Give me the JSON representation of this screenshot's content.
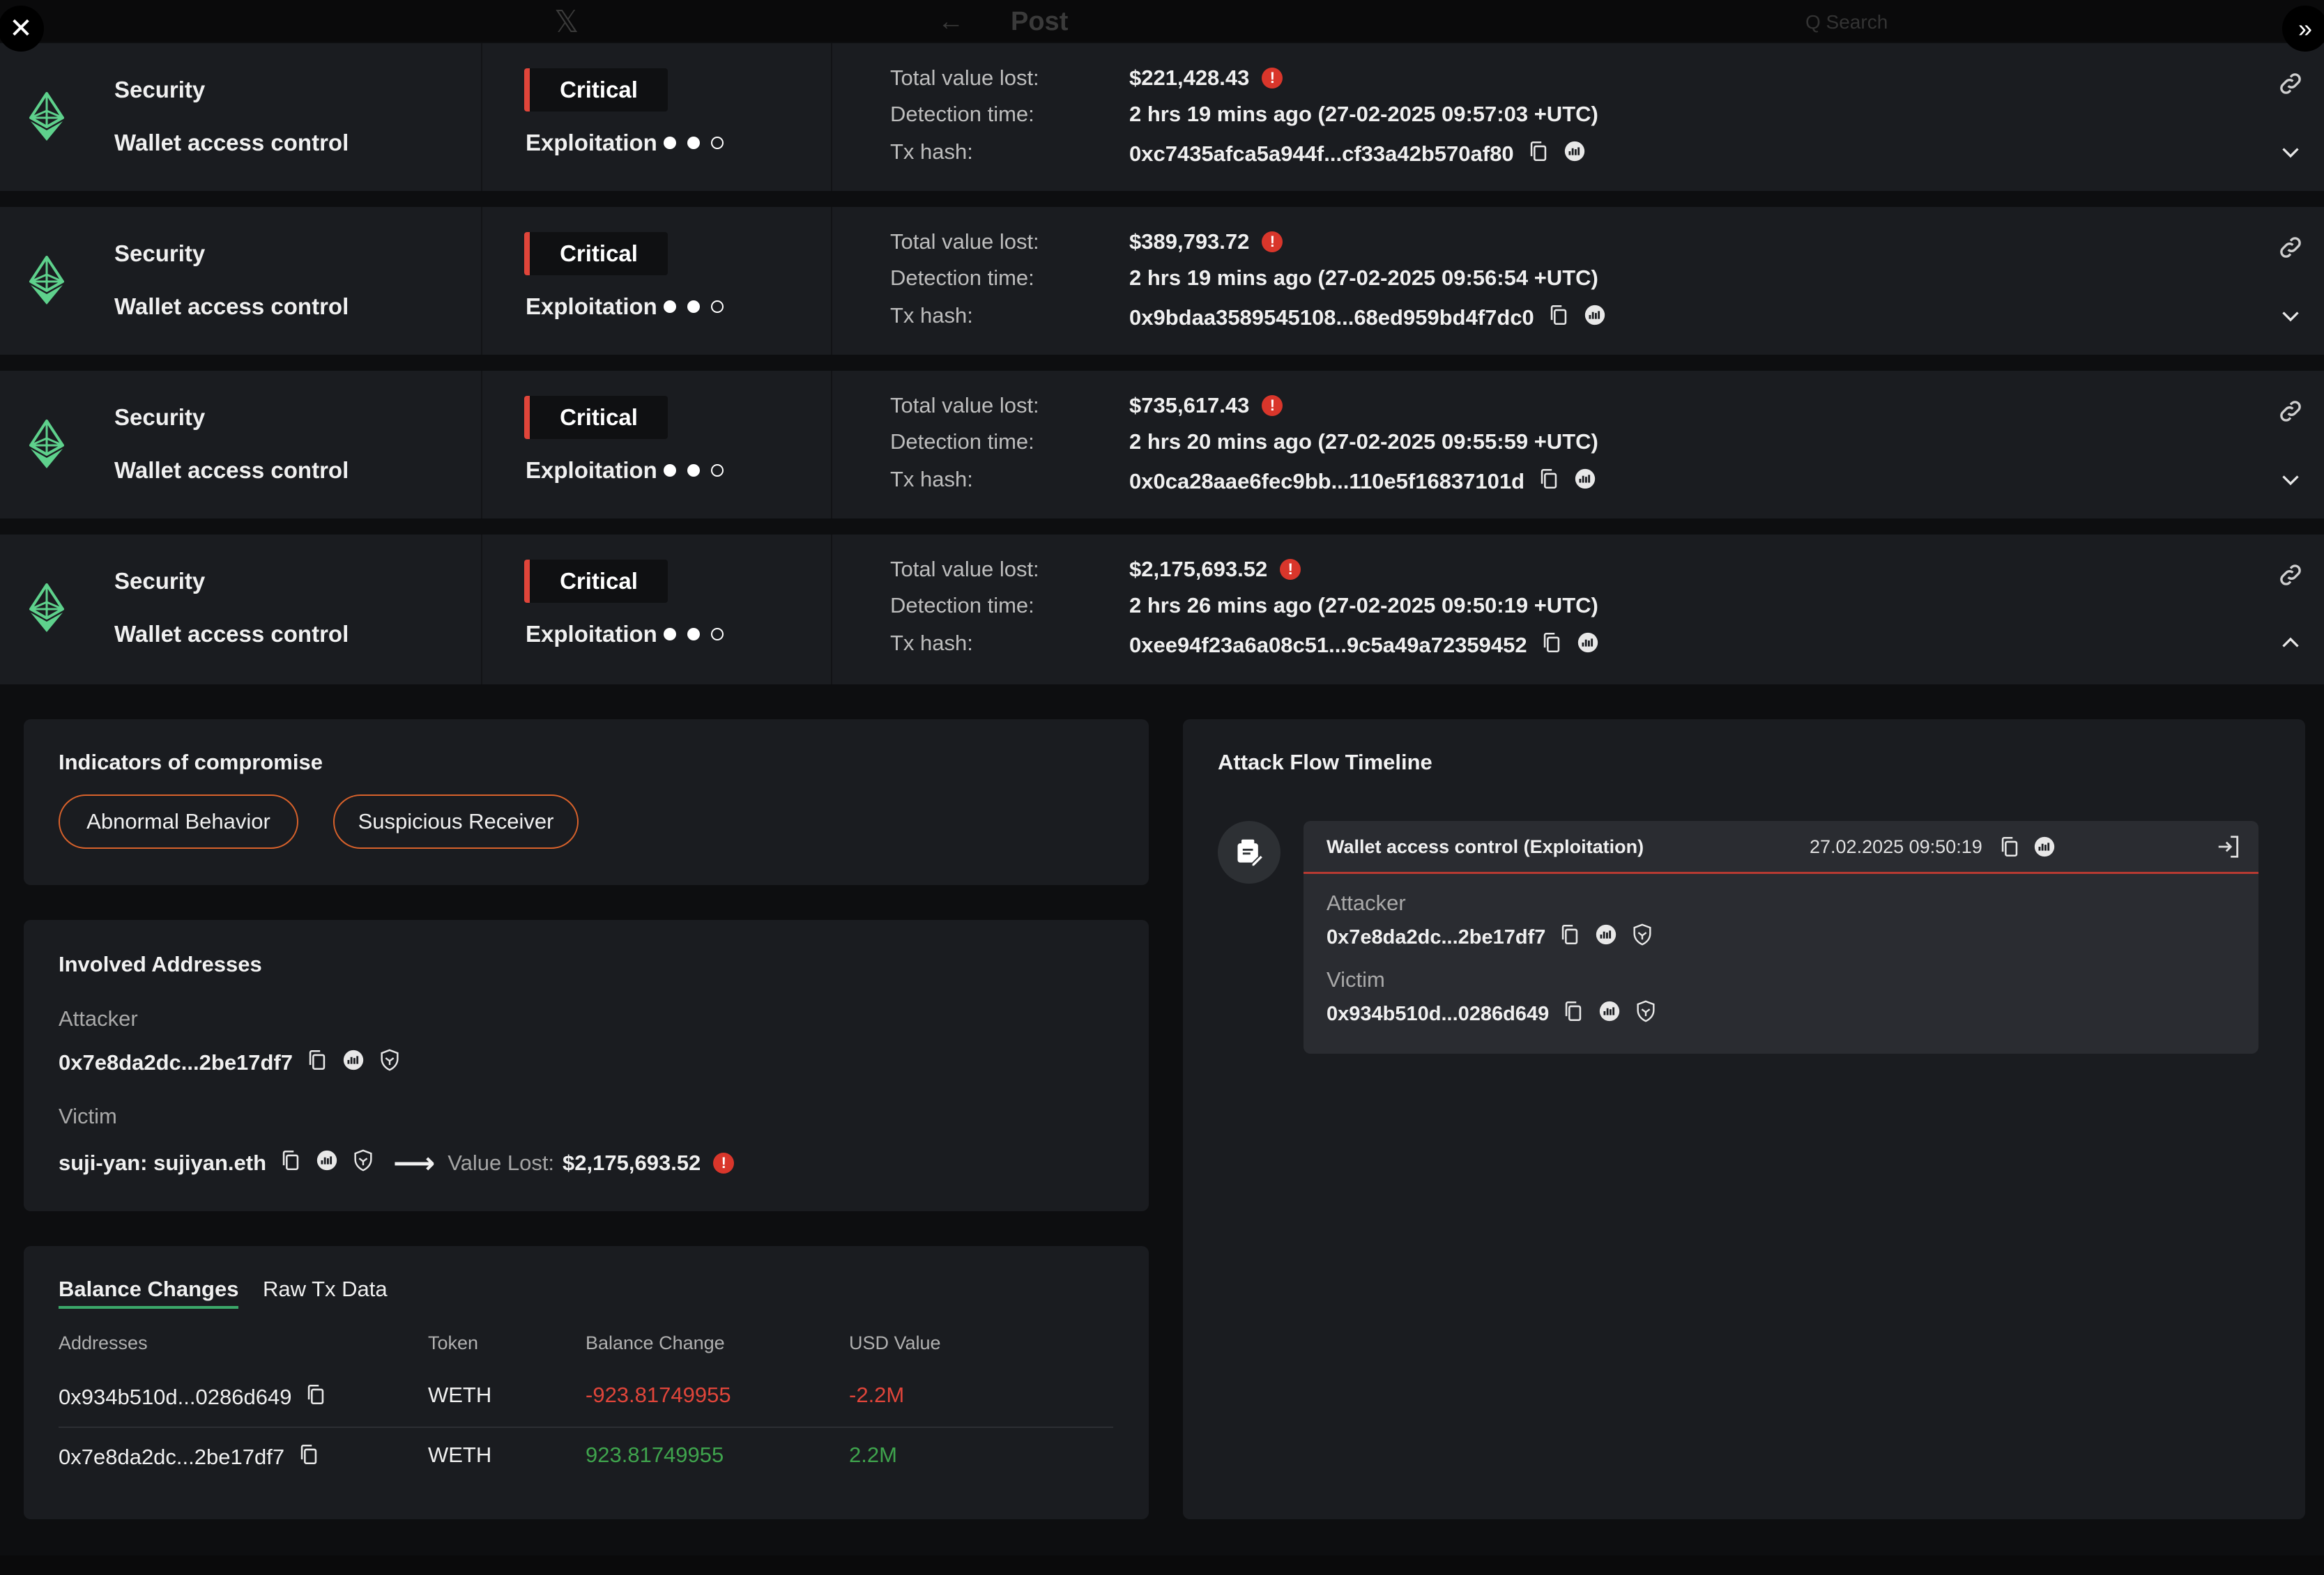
{
  "topbar": {
    "ghost_logo": "𝕏",
    "ghost_back": "←",
    "ghost_title": "Post",
    "ghost_search": "Q Search"
  },
  "controls": {
    "close_glyph": "✕",
    "expand_glyph": "»"
  },
  "alerts": [
    {
      "category": "Security",
      "subcategory": "Wallet access control",
      "severity": "Critical",
      "phase": "Exploitation",
      "phase_level": 2,
      "phase_total": 3,
      "labels": {
        "value_lost": "Total value lost:",
        "detection": "Detection time:",
        "tx": "Tx hash:"
      },
      "value_lost": "$221,428.43",
      "detection_time": "2 hrs 19 mins ago (27-02-2025 09:57:03 +UTC)",
      "tx_hash": "0xc7435afca5a944f...cf33a42b570af80",
      "expanded": false
    },
    {
      "category": "Security",
      "subcategory": "Wallet access control",
      "severity": "Critical",
      "phase": "Exploitation",
      "phase_level": 2,
      "phase_total": 3,
      "labels": {
        "value_lost": "Total value lost:",
        "detection": "Detection time:",
        "tx": "Tx hash:"
      },
      "value_lost": "$389,793.72",
      "detection_time": "2 hrs 19 mins ago (27-02-2025 09:56:54 +UTC)",
      "tx_hash": "0x9bdaa3589545108...68ed959bd4f7dc0",
      "expanded": false
    },
    {
      "category": "Security",
      "subcategory": "Wallet access control",
      "severity": "Critical",
      "phase": "Exploitation",
      "phase_level": 2,
      "phase_total": 3,
      "labels": {
        "value_lost": "Total value lost:",
        "detection": "Detection time:",
        "tx": "Tx hash:"
      },
      "value_lost": "$735,617.43",
      "detection_time": "2 hrs 20 mins ago (27-02-2025 09:55:59 +UTC)",
      "tx_hash": "0x0ca28aae6fec9bb...110e5f16837101d",
      "expanded": false
    },
    {
      "category": "Security",
      "subcategory": "Wallet access control",
      "severity": "Critical",
      "phase": "Exploitation",
      "phase_level": 2,
      "phase_total": 3,
      "labels": {
        "value_lost": "Total value lost:",
        "detection": "Detection time:",
        "tx": "Tx hash:"
      },
      "value_lost": "$2,175,693.52",
      "detection_time": "2 hrs 26 mins ago (27-02-2025 09:50:19 +UTC)",
      "tx_hash": "0xee94f23a6a08c51...9c5a49a72359452",
      "expanded": true
    }
  ],
  "indicators": {
    "title": "Indicators of compromise",
    "tags": [
      "Abnormal Behavior",
      "Suspicious Receiver"
    ]
  },
  "involved": {
    "title": "Involved Addresses",
    "attacker_label": "Attacker",
    "attacker": "0x7e8da2dc...2be17df7",
    "victim_label": "Victim",
    "victim": "suji-yan: sujiyan.eth",
    "value_lost_label": "Value Lost:",
    "value_lost": "$2,175,693.52"
  },
  "balance": {
    "tabs": [
      "Balance Changes",
      "Raw Tx Data"
    ],
    "active_tab": 0,
    "columns": [
      "Addresses",
      "Token",
      "Balance Change",
      "USD Value"
    ],
    "rows": [
      {
        "address": "0x934b510d...0286d649",
        "token": "WETH",
        "change": "-923.81749955",
        "usd": "-2.2M",
        "direction": "negative"
      },
      {
        "address": "0x7e8da2dc...2be17df7",
        "token": "WETH",
        "change": "923.81749955",
        "usd": "2.2M",
        "direction": "positive"
      }
    ]
  },
  "timeline": {
    "title": "Attack Flow Timeline",
    "event": {
      "title": "Wallet access control  (Exploitation)",
      "date": "27.02.2025 09:50:19",
      "attacker_label": "Attacker",
      "attacker": "0x7e8da2dc...2be17df7",
      "victim_label": "Victim",
      "victim": "0x934b510d...0286d649"
    }
  },
  "colors": {
    "critical": "#e0453a",
    "positive": "#3fa44d",
    "eth_icon": "#5ed18c",
    "pill_border": "#d9622b"
  },
  "icons": [
    "ethereum-icon",
    "copy-icon",
    "etherscan-icon",
    "shield-icon",
    "link-icon",
    "chevron-down-icon",
    "chevron-up-icon",
    "arrow-right-icon",
    "exit-icon",
    "wallet-icon",
    "warning-icon"
  ]
}
